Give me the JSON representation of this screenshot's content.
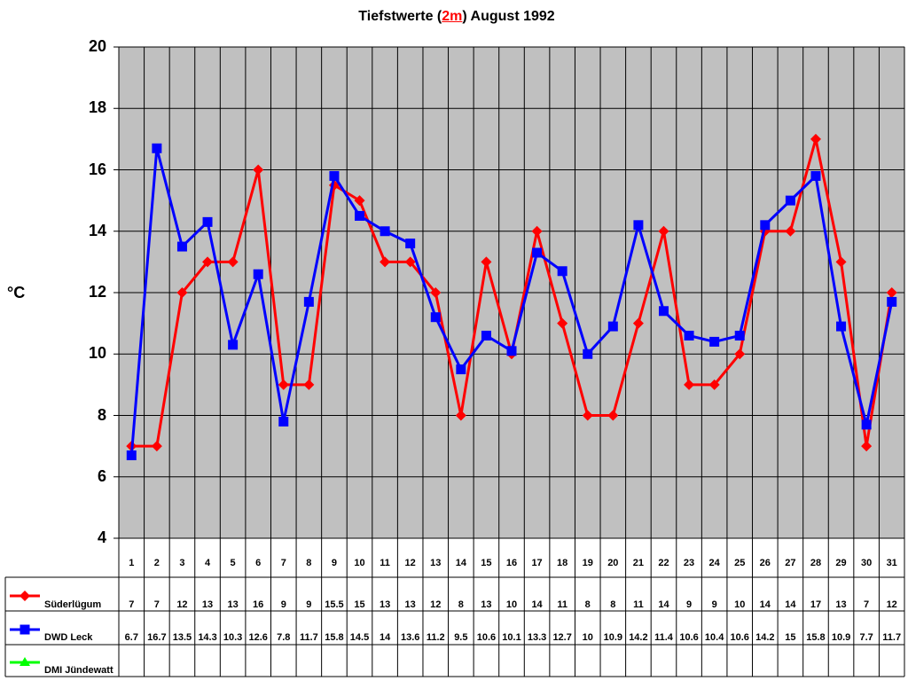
{
  "chart_data": {
    "type": "line",
    "title": "Tiefstwerte (2m) August 1992",
    "title_parts": {
      "pre": "Tiefstwerte (",
      "highlight": "2m",
      "post": ") August 1992"
    },
    "xlabel": "",
    "ylabel": "°C",
    "ylim": [
      4,
      20
    ],
    "yticks": [
      4,
      6,
      8,
      10,
      12,
      14,
      16,
      18,
      20
    ],
    "grid": true,
    "legend_position": "data-table-left",
    "categories": [
      1,
      2,
      3,
      4,
      5,
      6,
      7,
      8,
      9,
      10,
      11,
      12,
      13,
      14,
      15,
      16,
      17,
      18,
      19,
      20,
      21,
      22,
      23,
      24,
      25,
      26,
      27,
      28,
      29,
      30,
      31
    ],
    "series": [
      {
        "name": "Süderlügum",
        "color": "#ff0000",
        "marker": "diamond",
        "values": [
          7,
          7,
          12,
          13,
          13,
          16,
          9,
          9,
          15.5,
          15,
          13,
          13,
          12,
          8,
          13,
          10,
          14,
          11,
          8,
          8,
          11,
          14,
          9,
          9,
          10,
          14,
          14,
          17,
          13,
          7,
          12
        ]
      },
      {
        "name": "DWD Leck",
        "color": "#0000ff",
        "marker": "square",
        "values": [
          6.7,
          16.7,
          13.5,
          14.3,
          10.3,
          12.6,
          7.8,
          11.7,
          15.8,
          14.5,
          14,
          13.6,
          11.2,
          9.5,
          10.6,
          10.1,
          13.3,
          12.7,
          10,
          10.9,
          14.2,
          11.4,
          10.6,
          10.4,
          10.6,
          14.2,
          15,
          15.8,
          10.9,
          7.7,
          11.7
        ]
      },
      {
        "name": "DMI Jündewatt",
        "color": "#00ff00",
        "marker": "triangle",
        "values": [
          null,
          null,
          null,
          null,
          null,
          null,
          null,
          null,
          null,
          null,
          null,
          null,
          null,
          null,
          null,
          null,
          null,
          null,
          null,
          null,
          null,
          null,
          null,
          null,
          null,
          null,
          null,
          null,
          null,
          null,
          null
        ]
      }
    ],
    "plot_background": "#c0c0c0"
  }
}
